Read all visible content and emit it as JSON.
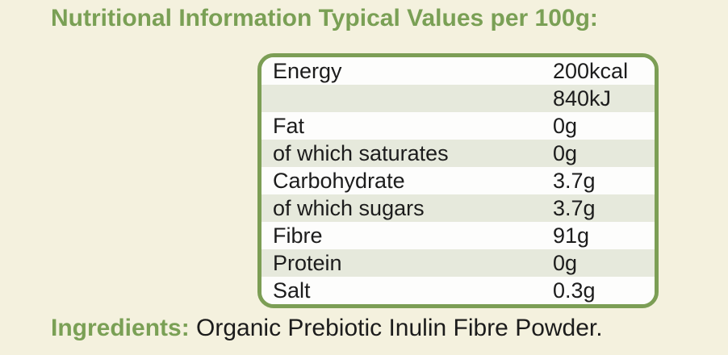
{
  "title": "Nutritional Information Typical Values per 100g:",
  "table": {
    "rows": [
      {
        "label": "Energy",
        "value": "200kcal"
      },
      {
        "label": "",
        "value": "840kJ"
      },
      {
        "label": "Fat",
        "value": "0g"
      },
      {
        "label": "of which saturates",
        "value": "0g"
      },
      {
        "label": "Carbohydrate",
        "value": "3.7g"
      },
      {
        "label": "of which sugars",
        "value": "3.7g"
      },
      {
        "label": "Fibre",
        "value": "91g"
      },
      {
        "label": "Protein",
        "value": "0g"
      },
      {
        "label": "Salt",
        "value": "0.3g"
      }
    ]
  },
  "ingredients": {
    "label": "Ingredients:",
    "text": "Organic Prebiotic Inulin Fibre Powder."
  },
  "colors": {
    "background": "#f4f1de",
    "accent_green": "#7aa055",
    "table_border_green": "#7c9e55",
    "row_alt_green": "#e6e9dc",
    "row_white": "#fdfdfc",
    "text_black": "#1c1c1c"
  }
}
